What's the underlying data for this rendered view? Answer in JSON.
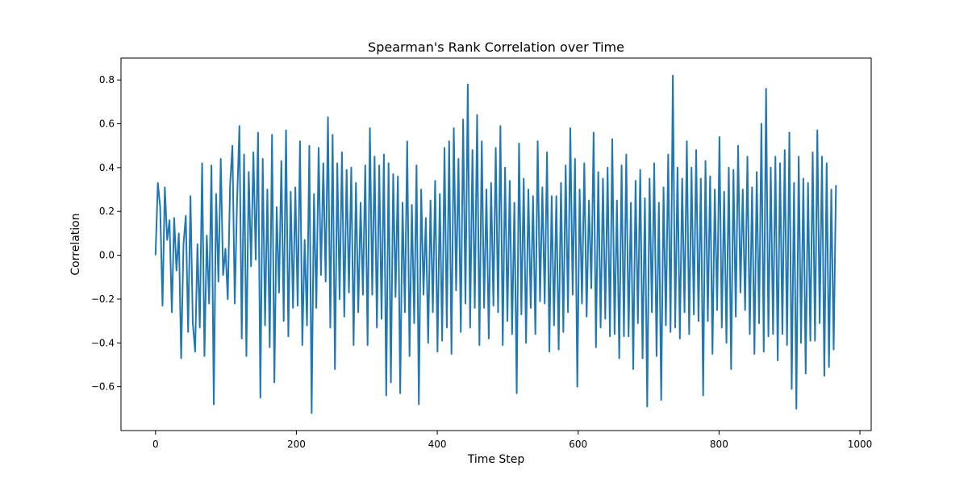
{
  "chart_data": {
    "type": "line",
    "title": "Spearman's Rank Correlation over Time",
    "xlabel": "Time Step",
    "ylabel": "Correlation",
    "xlim": [
      -49,
      1016
    ],
    "ylim": [
      -0.8,
      0.9
    ],
    "xticks": [
      0,
      200,
      400,
      600,
      800,
      1000
    ],
    "yticks": [
      -0.6,
      -0.4,
      -0.2,
      0.0,
      0.2,
      0.4,
      0.6,
      0.8
    ],
    "xtick_labels": [
      "0",
      "200",
      "400",
      "600",
      "800",
      "1000"
    ],
    "ytick_labels": [
      "−0.6",
      "−0.4",
      "−0.2",
      "0.0",
      "0.2",
      "0.4",
      "0.6",
      "0.8"
    ],
    "grid": false,
    "legend": "none",
    "color": "#1f77b4",
    "num_points": 967,
    "series": [
      {
        "x_start": 0,
        "x_step": 1,
        "values": [
          0.0,
          0.33,
          0.22,
          -0.23,
          0.31,
          0.07,
          0.16,
          -0.26,
          0.17,
          -0.07,
          0.1,
          -0.47,
          0.05,
          0.18,
          -0.35,
          0.27,
          -0.31,
          -0.44,
          0.05,
          -0.33,
          0.42,
          -0.46,
          0.09,
          -0.22,
          0.41,
          -0.68,
          0.28,
          -0.12,
          0.44,
          -0.09,
          0.03,
          -0.2,
          0.32,
          0.5,
          -0.22,
          0.25,
          0.59,
          -0.38,
          0.46,
          -0.46,
          0.38,
          -0.05,
          0.47,
          -0.02,
          0.56,
          -0.65,
          0.44,
          -0.32,
          0.3,
          -0.42,
          0.55,
          -0.58,
          0.22,
          -0.17,
          0.43,
          -0.3,
          0.57,
          -0.37,
          0.29,
          -0.24,
          0.31,
          -0.23,
          0.52,
          -0.41,
          0.07,
          -0.32,
          0.5,
          -0.72,
          0.28,
          -0.24,
          0.49,
          -0.09,
          0.42,
          -0.12,
          0.63,
          -0.33,
          0.55,
          -0.52,
          0.42,
          -0.2,
          0.47,
          -0.28,
          0.39,
          -0.17,
          0.4,
          -0.41,
          0.33,
          -0.26,
          0.24,
          -0.18,
          0.41,
          -0.41,
          0.58,
          -0.18,
          0.45,
          -0.33,
          0.41,
          -0.29,
          0.46,
          -0.64,
          0.42,
          -0.58,
          0.37,
          -0.19,
          0.36,
          -0.63,
          0.24,
          -0.26,
          0.52,
          -0.46,
          0.23,
          -0.31,
          0.41,
          -0.68,
          0.3,
          -0.18,
          0.17,
          -0.4,
          0.25,
          -0.26,
          0.34,
          -0.44,
          0.28,
          -0.39,
          0.49,
          -0.33,
          0.52,
          -0.45,
          0.58,
          -0.16,
          0.44,
          -0.35,
          0.62,
          -0.22,
          0.78,
          -0.33,
          0.48,
          -0.24,
          0.64,
          -0.41,
          0.52,
          -0.24,
          0.3,
          -0.38,
          0.33,
          -0.23,
          0.49,
          -0.26,
          0.59,
          -0.41,
          0.4,
          -0.3,
          0.34,
          -0.36,
          0.24,
          -0.63,
          0.51,
          -0.27,
          0.35,
          -0.4,
          0.3,
          -0.24,
          0.27,
          -0.36,
          0.52,
          -0.21,
          0.31,
          -0.22,
          0.47,
          -0.44,
          0.27,
          -0.32,
          0.27,
          -0.43,
          0.33,
          -0.35,
          0.41,
          -0.26,
          0.58,
          -0.18,
          0.44,
          -0.6,
          0.3,
          -0.22,
          0.42,
          -0.28,
          0.25,
          -0.15,
          0.56,
          -0.42,
          0.38,
          -0.33,
          0.35,
          -0.29,
          0.4,
          -0.37,
          0.53,
          -0.36,
          0.25,
          -0.47,
          0.41,
          -0.37,
          0.46,
          -0.37,
          0.24,
          -0.52,
          0.34,
          -0.31,
          0.39,
          -0.47,
          0.26,
          -0.69,
          0.35,
          -0.26,
          0.42,
          -0.46,
          0.24,
          -0.66,
          0.31,
          -0.32,
          0.46,
          -0.35,
          0.82,
          -0.33,
          0.4,
          -0.38,
          0.35,
          -0.26,
          0.52,
          -0.36,
          0.4,
          -0.27,
          0.48,
          -0.3,
          0.35,
          -0.64,
          0.43,
          -0.3,
          0.36,
          -0.45,
          0.3,
          -0.25,
          0.54,
          -0.33,
          0.29,
          -0.4,
          0.4,
          -0.52,
          0.39,
          -0.28,
          0.5,
          -0.17,
          0.3,
          -0.25,
          0.45,
          -0.36,
          0.31,
          -0.45,
          0.38,
          -0.31,
          0.6,
          -0.44,
          0.76,
          -0.37,
          0.4,
          -0.36,
          0.45,
          -0.48,
          0.42,
          -0.36,
          0.48,
          -0.41,
          0.56,
          -0.61,
          0.33,
          -0.7,
          0.45,
          -0.4,
          0.35,
          -0.54,
          0.33,
          -0.39,
          0.47,
          -0.39,
          0.57,
          -0.31,
          0.45,
          -0.55,
          0.42,
          -0.51,
          0.3,
          -0.43,
          0.32
        ]
      }
    ]
  }
}
